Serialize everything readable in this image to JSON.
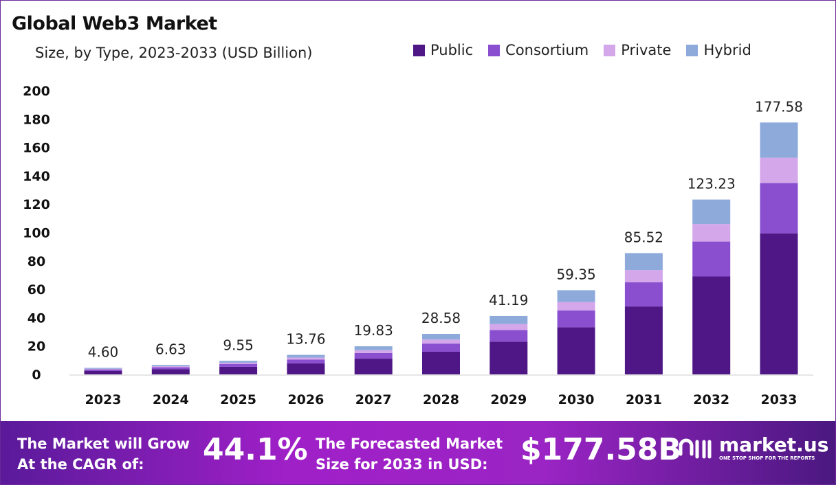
{
  "chart_data": {
    "type": "bar",
    "stacked": true,
    "title": "Global Web3 Market",
    "subtitle": "Size, by Type, 2023-2033 (USD Billion)",
    "categories": [
      "2023",
      "2024",
      "2025",
      "2026",
      "2027",
      "2028",
      "2029",
      "2030",
      "2031",
      "2032",
      "2033"
    ],
    "totals": [
      4.6,
      6.63,
      9.55,
      13.76,
      19.83,
      28.58,
      41.19,
      59.35,
      85.52,
      123.23,
      177.58
    ],
    "total_labels": [
      "4.60",
      "6.63",
      "9.55",
      "13.76",
      "19.83",
      "28.58",
      "41.19",
      "59.35",
      "85.52",
      "123.23",
      "177.58"
    ],
    "series": [
      {
        "name": "Public",
        "color": "#4f1786",
        "values": [
          2.58,
          3.71,
          5.35,
          7.71,
          11.1,
          16.0,
          23.07,
          33.24,
          47.89,
          69.01,
          99.44
        ]
      },
      {
        "name": "Consortium",
        "color": "#8a4fcf",
        "values": [
          0.92,
          1.33,
          1.91,
          2.75,
          3.97,
          5.72,
          8.24,
          11.87,
          17.1,
          24.65,
          35.52
        ]
      },
      {
        "name": "Private",
        "color": "#d4a6ea",
        "values": [
          0.46,
          0.66,
          0.96,
          1.38,
          1.98,
          2.86,
          4.12,
          5.94,
          8.55,
          12.32,
          17.76
        ]
      },
      {
        "name": "Hybrid",
        "color": "#8eaadb",
        "values": [
          0.64,
          0.93,
          1.33,
          1.92,
          2.78,
          4.0,
          5.76,
          8.3,
          11.98,
          17.25,
          24.86
        ]
      }
    ],
    "yticks": [
      "0",
      "20",
      "40",
      "60",
      "80",
      "100",
      "120",
      "140",
      "160",
      "180",
      "200"
    ],
    "ylim": [
      0,
      200
    ],
    "grid": false,
    "legend_position": "top-right"
  },
  "banner": {
    "cagr_text_1": "The Market will Grow",
    "cagr_text_2": "At the CAGR of:",
    "cagr_value": "44.1%",
    "forecast_text_1": "The Forecasted Market",
    "forecast_text_2": "Size for 2033 in USD:",
    "forecast_value": "$177.58B",
    "logo_text": "market.us",
    "logo_tagline": "ONE STOP SHOP FOR THE REPORTS"
  }
}
